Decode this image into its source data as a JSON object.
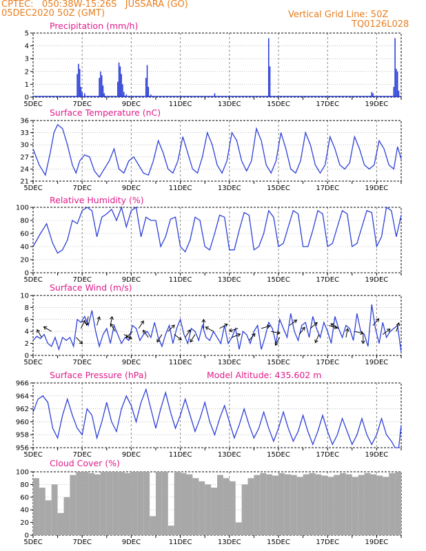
{
  "header": {
    "line1": "CPTEC:   050:38W-15:26S   JUSSARA (GO)",
    "line2": "05DEC2020 50Z (GMT)",
    "grid_note": "Vertical Grid Line: 50Z",
    "code": "TQ0126L028"
  },
  "colors": {
    "series": "#2c3fd6",
    "cloud": "#a8a8a8",
    "title": "#e01b8a",
    "header": "#e87d1e"
  },
  "x_labels": [
    "5DEC",
    "7DEC",
    "9DEC",
    "11DEC",
    "13DEC",
    "15DEC",
    "17DEC",
    "19DEC"
  ],
  "chart_data": [
    {
      "type": "bar",
      "title": "Precipitation (mm/h)",
      "ylim": [
        0,
        5
      ],
      "yticks": [
        0,
        1,
        2,
        3,
        4,
        5
      ],
      "x_days": [
        6.8,
        6.85,
        6.9,
        6.95,
        7.0,
        7.1,
        7.7,
        7.75,
        7.8,
        7.85,
        7.9,
        8.45,
        8.5,
        8.55,
        8.6,
        8.65,
        8.7,
        8.8,
        9.6,
        9.65,
        9.7,
        9.8,
        12.4,
        14.6,
        14.65,
        18.8,
        18.85,
        19.7,
        19.75,
        19.8,
        19.85,
        19.9
      ],
      "values": [
        1.8,
        2.6,
        2.2,
        0.8,
        0.4,
        0.3,
        1.5,
        2.0,
        1.7,
        0.9,
        0.3,
        1.2,
        2.7,
        2.4,
        1.8,
        1.0,
        0.4,
        0.2,
        1.5,
        2.5,
        0.8,
        0.2,
        0.3,
        4.6,
        2.4,
        0.4,
        0.3,
        0.8,
        4.6,
        2.2,
        2.0,
        0.5
      ]
    },
    {
      "type": "line",
      "title": "Surface Temperature (nC)",
      "ylim": [
        21,
        36
      ],
      "yticks": [
        21,
        24,
        27,
        30,
        33,
        36
      ],
      "x_days": [
        5.0,
        5.25,
        5.5,
        5.7,
        5.85,
        6.0,
        6.2,
        6.4,
        6.6,
        6.75,
        6.9,
        7.1,
        7.3,
        7.5,
        7.7,
        7.9,
        8.1,
        8.3,
        8.5,
        8.7,
        8.9,
        9.1,
        9.3,
        9.5,
        9.7,
        9.9,
        10.1,
        10.3,
        10.5,
        10.7,
        10.9,
        11.1,
        11.3,
        11.5,
        11.7,
        11.9,
        12.1,
        12.3,
        12.5,
        12.7,
        12.9,
        13.1,
        13.3,
        13.5,
        13.7,
        13.9,
        14.1,
        14.3,
        14.5,
        14.7,
        14.9,
        15.1,
        15.3,
        15.5,
        15.7,
        15.9,
        16.1,
        16.3,
        16.5,
        16.7,
        16.9,
        17.1,
        17.3,
        17.5,
        17.7,
        17.9,
        18.1,
        18.3,
        18.5,
        18.7,
        18.9,
        19.1,
        19.3,
        19.5,
        19.7,
        19.85,
        20.0
      ],
      "values": [
        29,
        25,
        22.5,
        28,
        33,
        35,
        34,
        30,
        25,
        23,
        26,
        27.5,
        27,
        23.5,
        22,
        24,
        26,
        29,
        24,
        23,
        26,
        27,
        25,
        23,
        22.5,
        26,
        31,
        28,
        24,
        23,
        26,
        32,
        28,
        24,
        23,
        27,
        33,
        30,
        25,
        23,
        26,
        33,
        31,
        26,
        23.5,
        26,
        34,
        31,
        25,
        23,
        26,
        33,
        29,
        24,
        23,
        26,
        33,
        30,
        25,
        23,
        25,
        32,
        29,
        25,
        24,
        25.5,
        32,
        29,
        25,
        24,
        25,
        31,
        29,
        25,
        24,
        29.5,
        26.5
      ]
    },
    {
      "type": "line",
      "title": "Relative Humidity (%)",
      "ylim": [
        0,
        100
      ],
      "yticks": [
        0,
        20,
        40,
        60,
        80,
        100
      ],
      "x_days": [
        5.0,
        5.3,
        5.55,
        5.8,
        6.0,
        6.2,
        6.4,
        6.6,
        6.8,
        7.0,
        7.2,
        7.4,
        7.6,
        7.8,
        8.0,
        8.2,
        8.4,
        8.6,
        8.8,
        9.0,
        9.2,
        9.4,
        9.6,
        9.8,
        10.0,
        10.2,
        10.4,
        10.6,
        10.8,
        11.0,
        11.2,
        11.4,
        11.6,
        11.8,
        12.0,
        12.2,
        12.4,
        12.6,
        12.8,
        13.0,
        13.2,
        13.4,
        13.6,
        13.8,
        14.0,
        14.2,
        14.4,
        14.6,
        14.8,
        15.0,
        15.2,
        15.4,
        15.6,
        15.8,
        16.0,
        16.2,
        16.4,
        16.6,
        16.8,
        17.0,
        17.2,
        17.4,
        17.6,
        17.8,
        18.0,
        18.2,
        18.4,
        18.6,
        18.8,
        19.0,
        19.2,
        19.4,
        19.6,
        19.8,
        20.0
      ],
      "values": [
        40,
        60,
        75,
        45,
        30,
        35,
        50,
        80,
        75,
        95,
        100,
        95,
        55,
        85,
        90,
        97,
        80,
        100,
        70,
        95,
        100,
        55,
        85,
        80,
        80,
        40,
        55,
        82,
        85,
        40,
        32,
        50,
        85,
        80,
        40,
        35,
        60,
        88,
        85,
        35,
        35,
        65,
        92,
        88,
        35,
        40,
        60,
        95,
        85,
        40,
        45,
        70,
        95,
        90,
        40,
        40,
        65,
        95,
        90,
        40,
        45,
        70,
        95,
        90,
        40,
        45,
        70,
        95,
        92,
        40,
        55,
        100,
        95,
        55,
        88
      ]
    },
    {
      "type": "line",
      "title": "Surface Wind (m/s)",
      "ylim": [
        0,
        10
      ],
      "yticks": [
        0,
        2,
        4,
        6,
        8,
        10
      ],
      "x_days": [
        5.0,
        5.15,
        5.3,
        5.45,
        5.6,
        5.75,
        5.9,
        6.05,
        6.2,
        6.35,
        6.5,
        6.65,
        6.8,
        6.95,
        7.1,
        7.25,
        7.4,
        7.55,
        7.7,
        7.85,
        8.0,
        8.15,
        8.3,
        8.45,
        8.6,
        8.75,
        8.9,
        9.05,
        9.2,
        9.35,
        9.5,
        9.65,
        9.8,
        9.95,
        10.1,
        10.25,
        10.4,
        10.55,
        10.7,
        10.85,
        11.0,
        11.15,
        11.3,
        11.45,
        11.6,
        11.75,
        11.9,
        12.05,
        12.2,
        12.35,
        12.5,
        12.65,
        12.8,
        12.95,
        13.1,
        13.25,
        13.4,
        13.55,
        13.7,
        13.85,
        14.0,
        14.15,
        14.3,
        14.45,
        14.6,
        14.75,
        14.9,
        15.05,
        15.2,
        15.35,
        15.5,
        15.65,
        15.8,
        15.95,
        16.1,
        16.25,
        16.4,
        16.55,
        16.7,
        16.85,
        17.0,
        17.15,
        17.3,
        17.45,
        17.6,
        17.75,
        17.9,
        18.05,
        18.2,
        18.35,
        18.5,
        18.65,
        18.8,
        18.95,
        19.1,
        19.25,
        19.4,
        19.55,
        19.7,
        19.85,
        20.0
      ],
      "values": [
        2.5,
        3.2,
        2.8,
        3.5,
        2.0,
        1.5,
        3.0,
        1.0,
        3.0,
        2.5,
        3.0,
        1.5,
        6.0,
        5.5,
        6.5,
        5.0,
        7.5,
        4.0,
        1.5,
        3.5,
        4.5,
        2.0,
        5.0,
        3.5,
        2.0,
        3.0,
        2.5,
        5.0,
        4.5,
        2.5,
        3.5,
        4.0,
        3.0,
        5.5,
        3.0,
        1.5,
        3.5,
        5.0,
        2.0,
        4.5,
        6.0,
        3.5,
        2.0,
        4.5,
        4.0,
        2.5,
        5.0,
        3.0,
        2.5,
        4.0,
        3.0,
        2.0,
        5.0,
        2.0,
        3.0,
        4.5,
        1.0,
        4.0,
        3.5,
        2.0,
        4.0,
        5.0,
        1.0,
        3.0,
        5.5,
        4.5,
        2.0,
        6.0,
        4.5,
        3.0,
        7.0,
        4.0,
        2.5,
        5.0,
        5.5,
        3.0,
        6.5,
        4.5,
        3.0,
        5.5,
        4.0,
        2.0,
        6.5,
        4.5,
        3.0,
        5.0,
        4.5,
        2.5,
        7.0,
        4.0,
        3.5,
        1.5,
        8.5,
        4.5,
        2.0,
        5.5,
        3.0,
        4.0,
        4.5,
        5.0,
        0.5
      ],
      "arrows": [
        {
          "day": 5.35,
          "speed": 3.0,
          "u": -0.6,
          "v": 1.0
        },
        {
          "day": 5.75,
          "speed": 4.0,
          "u": -1.0,
          "v": 0.6
        },
        {
          "day": 6.75,
          "speed": 3.0,
          "u": 0.8,
          "v": -0.8
        },
        {
          "day": 6.95,
          "speed": 4.5,
          "u": 0.5,
          "v": 1.0
        },
        {
          "day": 7.25,
          "speed": 6.5,
          "u": -0.2,
          "v": -1.0
        },
        {
          "day": 7.6,
          "speed": 5.0,
          "u": 0.3,
          "v": 1.0
        },
        {
          "day": 8.15,
          "speed": 5.0,
          "u": 0.2,
          "v": 1.0
        },
        {
          "day": 8.35,
          "speed": 4.0,
          "u": -0.5,
          "v": 0.8
        },
        {
          "day": 8.7,
          "speed": 3.5,
          "u": 0.9,
          "v": -0.5
        },
        {
          "day": 9.05,
          "speed": 4.0,
          "u": -0.8,
          "v": -0.8
        },
        {
          "day": 9.3,
          "speed": 4.5,
          "u": 0.6,
          "v": 0.9
        },
        {
          "day": 9.7,
          "speed": 3.0,
          "u": -0.6,
          "v": 0.8
        },
        {
          "day": 10.25,
          "speed": 3.5,
          "u": -0.5,
          "v": -0.8
        },
        {
          "day": 10.5,
          "speed": 4.0,
          "u": 0.7,
          "v": 0.7
        },
        {
          "day": 10.75,
          "speed": 3.5,
          "u": 0.8,
          "v": -0.6
        },
        {
          "day": 11.2,
          "speed": 3.0,
          "u": 0.6,
          "v": 0.9
        },
        {
          "day": 11.6,
          "speed": 3.5,
          "u": -0.5,
          "v": -0.8
        },
        {
          "day": 11.95,
          "speed": 4.5,
          "u": 0.0,
          "v": 1.0
        },
        {
          "day": 12.35,
          "speed": 4.0,
          "u": -0.9,
          "v": 0.5
        },
        {
          "day": 12.6,
          "speed": 4.5,
          "u": 0.9,
          "v": 0.5
        },
        {
          "day": 13.1,
          "speed": 3.0,
          "u": 1.0,
          "v": 0.4
        },
        {
          "day": 13.35,
          "speed": 4.5,
          "u": -1.0,
          "v": -0.3
        },
        {
          "day": 13.8,
          "speed": 2.5,
          "u": 0.8,
          "v": 0.9
        },
        {
          "day": 14.3,
          "speed": 4.5,
          "u": 1.0,
          "v": 0.3
        },
        {
          "day": 14.7,
          "speed": 4.0,
          "u": 1.0,
          "v": -0.2
        },
        {
          "day": 15.05,
          "speed": 3.0,
          "u": -0.5,
          "v": -0.9
        },
        {
          "day": 15.45,
          "speed": 5.0,
          "u": 0.8,
          "v": 0.6
        },
        {
          "day": 15.85,
          "speed": 3.5,
          "u": 0.6,
          "v": 0.8
        },
        {
          "day": 16.3,
          "speed": 4.5,
          "u": 0.7,
          "v": 0.6
        },
        {
          "day": 16.65,
          "speed": 3.5,
          "u": -0.4,
          "v": -0.9
        },
        {
          "day": 17.05,
          "speed": 5.0,
          "u": 1.0,
          "v": -0.3
        },
        {
          "day": 17.45,
          "speed": 4.5,
          "u": -0.8,
          "v": 0.5
        },
        {
          "day": 17.75,
          "speed": 3.0,
          "u": 0.2,
          "v": 1.0
        },
        {
          "day": 18.1,
          "speed": 4.0,
          "u": 0.9,
          "v": -0.2
        },
        {
          "day": 18.45,
          "speed": 3.5,
          "u": 0.0,
          "v": -1.0
        },
        {
          "day": 18.85,
          "speed": 5.0,
          "u": 0.7,
          "v": 0.8
        },
        {
          "day": 19.25,
          "speed": 3.5,
          "u": 0.8,
          "v": 0.6
        },
        {
          "day": 19.8,
          "speed": 4.0,
          "u": 0.3,
          "v": 1.0
        }
      ]
    },
    {
      "type": "line",
      "title": "Surface Pressure (hPa)",
      "annotation": "Model Altitude: 435.602 m",
      "ylim": [
        956,
        966
      ],
      "yticks": [
        956,
        958,
        960,
        962,
        964,
        966
      ],
      "x_days": [
        5.0,
        5.2,
        5.4,
        5.6,
        5.8,
        6.0,
        6.2,
        6.4,
        6.6,
        6.8,
        7.0,
        7.2,
        7.4,
        7.6,
        7.8,
        8.0,
        8.2,
        8.4,
        8.6,
        8.8,
        9.0,
        9.2,
        9.4,
        9.6,
        9.8,
        10.0,
        10.2,
        10.4,
        10.6,
        10.8,
        11.0,
        11.2,
        11.4,
        11.6,
        11.8,
        12.0,
        12.2,
        12.4,
        12.6,
        12.8,
        13.0,
        13.2,
        13.4,
        13.6,
        13.8,
        14.0,
        14.2,
        14.4,
        14.6,
        14.8,
        15.0,
        15.2,
        15.4,
        15.6,
        15.8,
        16.0,
        16.2,
        16.4,
        16.6,
        16.8,
        17.0,
        17.2,
        17.4,
        17.6,
        17.8,
        18.0,
        18.2,
        18.4,
        18.6,
        18.8,
        19.0,
        19.2,
        19.4,
        19.6,
        19.75,
        19.9,
        20.0
      ],
      "values": [
        961.5,
        963.5,
        964,
        963,
        959,
        957.5,
        961,
        963.5,
        961,
        959,
        958,
        962,
        961,
        957.5,
        960,
        963,
        960,
        958.5,
        962,
        964,
        962.5,
        960,
        963,
        965,
        962,
        959,
        962,
        964.5,
        961.5,
        959,
        961,
        963.5,
        961,
        958.5,
        960.5,
        963,
        960,
        958,
        960.5,
        962.5,
        960,
        957.5,
        959.5,
        962,
        959.5,
        957.5,
        959,
        961.5,
        959,
        957,
        959,
        961.5,
        959,
        957,
        958.5,
        961,
        958.5,
        956.5,
        958.5,
        961,
        958.5,
        956.5,
        958,
        960.5,
        958.5,
        956.5,
        958,
        960.5,
        958,
        956.5,
        958,
        960.5,
        958,
        957,
        956,
        955.5,
        959.5
      ]
    },
    {
      "type": "bar",
      "title": "Cloud Cover (%)",
      "ylim": [
        0,
        100
      ],
      "yticks": [
        0,
        20,
        40,
        60,
        80,
        100
      ],
      "x_days": [
        5.0,
        5.25,
        5.5,
        5.75,
        6.0,
        6.25,
        6.5,
        6.75,
        7.0,
        7.25,
        7.5,
        7.75,
        8.0,
        8.25,
        8.5,
        8.75,
        9.0,
        9.25,
        9.5,
        9.75,
        10.0,
        10.25,
        10.5,
        10.75,
        11.0,
        11.25,
        11.5,
        11.75,
        12.0,
        12.25,
        12.5,
        12.75,
        13.0,
        13.25,
        13.5,
        13.75,
        14.0,
        14.25,
        14.5,
        14.75,
        15.0,
        15.25,
        15.5,
        15.75,
        16.0,
        16.25,
        16.5,
        16.75,
        17.0,
        17.25,
        17.5,
        17.75,
        18.0,
        18.25,
        18.5,
        18.75,
        19.0,
        19.25,
        19.5,
        19.75
      ],
      "values": [
        90,
        75,
        55,
        80,
        35,
        60,
        95,
        100,
        100,
        98,
        96,
        100,
        100,
        100,
        100,
        98,
        100,
        100,
        100,
        30,
        100,
        100,
        15,
        100,
        98,
        96,
        90,
        85,
        80,
        75,
        95,
        90,
        85,
        20,
        80,
        90,
        95,
        98,
        96,
        94,
        98,
        96,
        95,
        92,
        96,
        98,
        96,
        94,
        92,
        95,
        98,
        96,
        92,
        95,
        98,
        96,
        94,
        92,
        98,
        100
      ]
    }
  ]
}
